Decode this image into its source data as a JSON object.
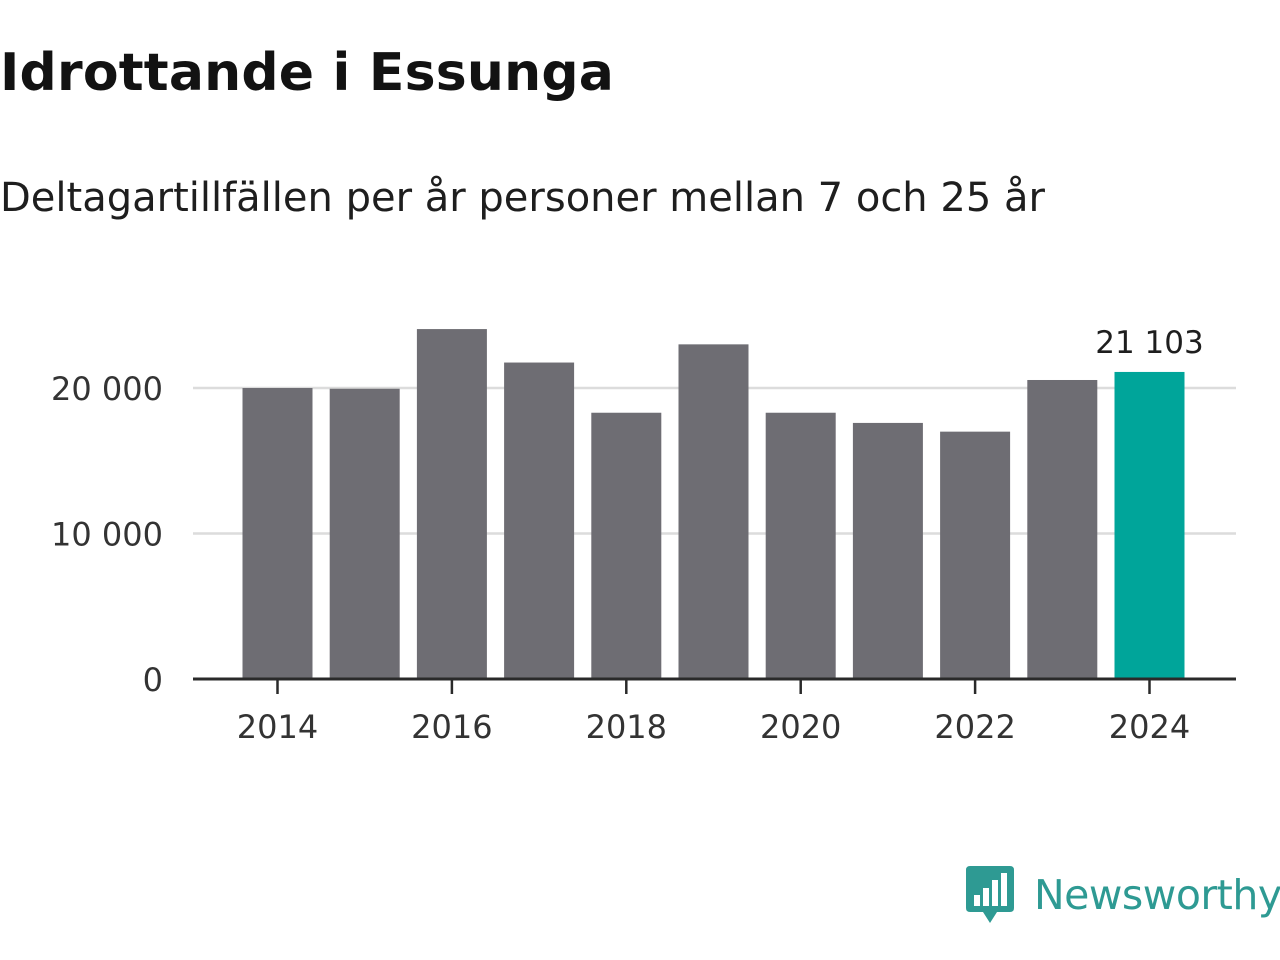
{
  "chart_data": {
    "type": "bar",
    "title": "Idrottande i Essunga",
    "subtitle": "Deltagartillfällen per år personer mellan 7 och 25 år",
    "categories": [
      "2014",
      "2015",
      "2016",
      "2017",
      "2018",
      "2019",
      "2020",
      "2021",
      "2022",
      "2023",
      "2024"
    ],
    "values": [
      20000,
      19950,
      24050,
      21750,
      18300,
      23000,
      18300,
      17600,
      17000,
      20550,
      21103
    ],
    "highlight_index": 10,
    "highlight_label": "21 103",
    "xlabel": "",
    "ylabel": "",
    "ylim": [
      0,
      25000
    ],
    "yticks": [
      {
        "value": 0,
        "label": "0"
      },
      {
        "value": 10000,
        "label": "10 000"
      },
      {
        "value": 20000,
        "label": "20 000"
      }
    ],
    "xtick_labels": [
      "2014",
      "2016",
      "2018",
      "2020",
      "2022",
      "2024"
    ],
    "grid": true,
    "legend": "none",
    "colors": {
      "bar": "#6e6d73",
      "highlight": "#00a59a",
      "grid": "#dcdcdc",
      "axis": "#2a2a2a"
    }
  },
  "brand": {
    "name": "Newsworthy",
    "icon": "newsworthy-logo-icon",
    "color": "#2e9a93"
  }
}
